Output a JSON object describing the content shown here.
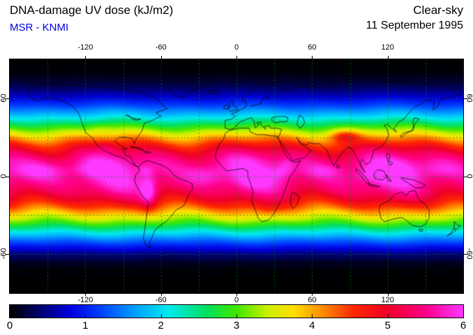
{
  "header": {
    "title": "DNA-damage UV dose (kJ/m2)",
    "source": "MSR - KNMI",
    "condition": "Clear-sky",
    "date": "11 September 1995"
  },
  "colors": {
    "background": "#ffffff",
    "title_text": "#000000",
    "source_text": "#0000dd",
    "grid": "#008800",
    "coastline": "#000000",
    "map_border": "#000000"
  },
  "chart_data": {
    "type": "heatmap",
    "title": "DNA-damage UV dose (kJ/m2)",
    "source": "MSR - KNMI",
    "condition": "Clear-sky",
    "date": "11 September 1995",
    "units": "kJ/m2",
    "projection": "equirectangular",
    "lon_range": [
      -180,
      180
    ],
    "lat_range": [
      -90,
      90
    ],
    "lon_ticks": [
      -120,
      -60,
      0,
      60,
      120
    ],
    "lat_ticks": [
      60,
      0,
      -60
    ],
    "grid_step_deg": 30,
    "grid_on": true,
    "colorbar": {
      "min": 0,
      "max": 6,
      "tick_values": [
        0,
        1,
        2,
        3,
        4,
        5,
        6
      ],
      "tick_labels": [
        "0",
        "1",
        "2",
        "3",
        "4",
        "5",
        "6"
      ],
      "stops": [
        [
          0,
          "#000000"
        ],
        [
          0.4,
          "#000070"
        ],
        [
          0.8,
          "#0000e0"
        ],
        [
          1.2,
          "#0040ff"
        ],
        [
          1.7,
          "#00a8ff"
        ],
        [
          2.1,
          "#00eaf0"
        ],
        [
          2.6,
          "#00e060"
        ],
        [
          3.0,
          "#40e800"
        ],
        [
          3.4,
          "#c8f000"
        ],
        [
          3.75,
          "#ffe000"
        ],
        [
          4.15,
          "#ff8800"
        ],
        [
          4.55,
          "#ff2800"
        ],
        [
          5.0,
          "#ee0028"
        ],
        [
          5.5,
          "#ff0088"
        ],
        [
          6,
          "#ff38ff"
        ]
      ]
    },
    "zonal_mean_profile": {
      "lat": [
        -90,
        -80,
        -72,
        -66,
        -60,
        -54,
        -48,
        -42,
        -36,
        -30,
        -24,
        -18,
        -12,
        -6,
        0,
        6,
        12,
        18,
        24,
        30,
        36,
        42,
        48,
        54,
        60,
        66,
        72,
        80,
        90
      ],
      "dose_kj_m2": [
        0,
        0,
        0.03,
        0.15,
        0.45,
        0.95,
        1.55,
        2.25,
        3.0,
        3.7,
        4.4,
        4.95,
        5.35,
        5.6,
        5.7,
        5.72,
        5.6,
        5.25,
        4.7,
        4.0,
        3.2,
        2.45,
        1.8,
        1.25,
        0.8,
        0.45,
        0.2,
        0.04,
        0
      ]
    },
    "zonal_wave": {
      "amp1": 0.045,
      "wavelength1_deg": 110,
      "phase1": 0.8,
      "amp2": 0.035,
      "wavelength2_deg": 56
    },
    "enhancements": [
      {
        "name": "equatorial-west-pacific",
        "lon": -155,
        "lat": 4,
        "amplitude": 0.45,
        "sigma_lon": 16,
        "sigma_lat": 5
      },
      {
        "name": "equatorial-east-pacific",
        "lon": -115,
        "lat": 5,
        "amplitude": 0.3,
        "sigma_lon": 9,
        "sigma_lat": 4
      },
      {
        "name": "andes-altiplano",
        "lon": -70,
        "lat": -13,
        "amplitude": 0.9,
        "sigma_lon": 4.5,
        "sigma_lat": 8
      },
      {
        "name": "colombia-andes",
        "lon": -72,
        "lat": 4,
        "amplitude": 0.3,
        "sigma_lon": 4,
        "sigma_lat": 3
      },
      {
        "name": "equatorial-atlantic",
        "lon": -25,
        "lat": 1,
        "amplitude": 0.4,
        "sigma_lon": 11,
        "sigma_lat": 5
      },
      {
        "name": "congo",
        "lon": 14,
        "lat": -2,
        "amplitude": 0.3,
        "sigma_lon": 8,
        "sigma_lat": 4
      },
      {
        "name": "east-africa",
        "lon": 36,
        "lat": 3,
        "amplitude": 0.35,
        "sigma_lon": 6,
        "sigma_lat": 4
      },
      {
        "name": "ethiopian-highlands",
        "lon": 40,
        "lat": 9,
        "amplitude": 0.25,
        "sigma_lon": 4,
        "sigma_lat": 3
      },
      {
        "name": "equatorial-indian-ocean",
        "lon": 70,
        "lat": 4,
        "amplitude": 0.32,
        "sigma_lon": 11,
        "sigma_lat": 4
      },
      {
        "name": "indonesia",
        "lon": 105,
        "lat": 1,
        "amplitude": 0.3,
        "sigma_lon": 8,
        "sigma_lat": 4
      },
      {
        "name": "new-guinea",
        "lon": 125,
        "lat": 3,
        "amplitude": 0.4,
        "sigma_lon": 10,
        "sigma_lat": 5
      },
      {
        "name": "west-pacific",
        "lon": 162,
        "lat": 5,
        "amplitude": 0.33,
        "sigma_lon": 12,
        "sigma_lat": 5
      },
      {
        "name": "tibetan-plateau",
        "lon": 86,
        "lat": 31,
        "amplitude": 0.9,
        "sigma_lon": 8,
        "sigma_lat": 3.5
      },
      {
        "name": "mexican-plateau",
        "lon": -103,
        "lat": 23,
        "amplitude": 0.3,
        "sigma_lon": 5,
        "sigma_lat": 3
      },
      {
        "name": "rockies",
        "lon": -108,
        "lat": 37,
        "amplitude": 0.2,
        "sigma_lon": 6,
        "sigma_lat": 3
      },
      {
        "name": "southern-africa",
        "lon": 24,
        "lat": -26,
        "amplitude": 0.25,
        "sigma_lon": 7,
        "sigma_lat": 4
      }
    ],
    "coastlines": {
      "north_america": [
        -166,
        68,
        -163,
        60,
        -158,
        58,
        -152,
        60,
        -145,
        60,
        -136,
        57,
        -130,
        54,
        -125,
        48,
        -123,
        42,
        -120,
        34,
        -114,
        29,
        -110,
        23,
        -105,
        20,
        -97,
        16,
        -93,
        15,
        -88,
        13,
        -84,
        10,
        -80,
        8,
        -78,
        7,
        -81,
        9,
        -84,
        15,
        -88,
        16,
        -90,
        21,
        -87,
        21,
        -91,
        23,
        -97,
        27,
        -93,
        30,
        -88,
        30,
        -83,
        29,
        -81,
        25,
        -80,
        28,
        -75,
        35,
        -73,
        41,
        -69,
        42,
        -65,
        44,
        -60,
        46,
        -64,
        49,
        -58,
        51,
        -55,
        52,
        -60,
        56,
        -64,
        60,
        -70,
        62,
        -77,
        65,
        -85,
        66,
        -93,
        68,
        -103,
        68,
        -115,
        69,
        -128,
        70,
        -140,
        70,
        -152,
        71,
        -162,
        70,
        -166,
        68
      ],
      "greenland": [
        -43,
        60,
        -50,
        63,
        -53,
        66,
        -51,
        69,
        -56,
        72,
        -60,
        75,
        -56,
        78,
        -48,
        80,
        -38,
        82,
        -28,
        82,
        -21,
        79,
        -19,
        75,
        -23,
        71,
        -27,
        69,
        -33,
        67,
        -40,
        63,
        -43,
        60
      ],
      "south_america": [
        -78,
        7,
        -74,
        11,
        -70,
        12,
        -64,
        10,
        -58,
        8,
        -53,
        5,
        -50,
        1,
        -45,
        -2,
        -39,
        -4,
        -35,
        -6,
        -35,
        -10,
        -38,
        -14,
        -40,
        -19,
        -42,
        -23,
        -48,
        -26,
        -52,
        -31,
        -56,
        -35,
        -62,
        -39,
        -65,
        -42,
        -67,
        -47,
        -69,
        -51,
        -68,
        -55,
        -72,
        -53,
        -74,
        -48,
        -73,
        -42,
        -72,
        -35,
        -71,
        -28,
        -70,
        -20,
        -75,
        -15,
        -79,
        -8,
        -81,
        -4,
        -80,
        1,
        -77,
        4,
        -78,
        7
      ],
      "africa": [
        -6,
        35,
        1,
        37,
        10,
        37,
        11,
        34,
        16,
        32,
        22,
        32,
        28,
        31,
        32,
        31,
        34,
        28,
        36,
        22,
        38,
        18,
        41,
        14,
        44,
        11,
        48,
        11,
        51,
        12,
        46,
        4,
        42,
        -1,
        40,
        -7,
        38,
        -12,
        36,
        -17,
        33,
        -23,
        29,
        -30,
        25,
        -34,
        20,
        -35,
        17,
        -32,
        15,
        -26,
        12,
        -19,
        13,
        -12,
        11,
        -5,
        9,
        0,
        9,
        4,
        5,
        6,
        -1,
        5,
        -8,
        4,
        -13,
        9,
        -17,
        14,
        -16,
        19,
        -14,
        24,
        -10,
        29,
        -9,
        33,
        -6,
        35
      ],
      "eurasia": [
        -9,
        37,
        -9,
        43,
        -4,
        44,
        -1,
        46,
        -4,
        48,
        -1,
        49,
        3,
        51,
        7,
        53,
        8,
        55,
        8,
        57,
        5,
        58,
        5,
        61,
        7,
        63,
        11,
        65,
        14,
        68,
        18,
        70,
        24,
        71,
        28,
        71,
        31,
        70,
        36,
        66,
        40,
        66,
        45,
        68,
        53,
        69,
        61,
        69,
        68,
        68,
        73,
        68,
        77,
        72,
        85,
        74,
        95,
        76,
        103,
        77,
        110,
        76,
        117,
        73,
        126,
        73,
        136,
        72,
        146,
        72,
        153,
        70,
        160,
        70,
        167,
        69,
        172,
        67,
        178,
        66,
        179,
        63,
        174,
        62,
        170,
        60,
        163,
        60,
        159,
        53,
        156,
        51,
        157,
        57,
        152,
        59,
        147,
        56,
        141,
        53,
        137,
        49,
        133,
        44,
        129,
        42,
        127,
        39,
        125,
        37,
        127,
        34,
        123,
        37,
        120,
        40,
        117,
        39,
        119,
        37,
        121,
        32,
        118,
        26,
        114,
        22,
        109,
        20,
        108,
        16,
        106,
        11,
        103,
        9,
        100,
        13,
        98,
        10,
        99,
        7,
        102,
        3,
        100,
        6,
        97,
        12,
        94,
        17,
        91,
        22,
        88,
        22,
        86,
        20,
        82,
        16,
        79,
        11,
        77,
        8,
        74,
        14,
        72,
        20,
        68,
        23,
        66,
        25,
        61,
        25,
        57,
        26,
        56,
        24,
        52,
        25,
        49,
        28,
        48,
        30,
        50,
        26,
        52,
        24,
        56,
        22,
        59,
        20,
        57,
        17,
        53,
        14,
        48,
        13,
        44,
        12,
        43,
        15,
        40,
        19,
        37,
        24,
        34,
        28,
        32,
        30,
        34,
        31,
        35,
        34,
        36,
        36,
        32,
        37,
        27,
        37,
        26,
        39,
        22,
        38,
        23,
        36,
        20,
        39,
        19,
        42,
        16,
        41,
        18,
        40,
        15,
        37,
        14,
        42,
        12,
        45,
        8,
        44,
        6,
        43,
        3,
        42,
        0,
        39,
        -2,
        37,
        -5,
        36,
        -9,
        37
      ],
      "black_sea": [
        28,
        45,
        33,
        46,
        38,
        46,
        41,
        45,
        40,
        42,
        35,
        42,
        31,
        41,
        28,
        43,
        28,
        45
      ],
      "caspian_sea": [
        50,
        47,
        53,
        45,
        54,
        41,
        52,
        38,
        50,
        37,
        48,
        40,
        49,
        44,
        50,
        47
      ],
      "baltic_sea": [
        11,
        54,
        16,
        55,
        20,
        56,
        19,
        58,
        22,
        60,
        26,
        60,
        24,
        63,
        22,
        66
      ],
      "great_lakes": [
        -88,
        47,
        -85,
        46,
        -83,
        44,
        -79,
        43,
        -76,
        44,
        -79,
        44,
        -83,
        45,
        -86,
        47,
        -88,
        47
      ],
      "uk": [
        -5,
        50,
        1,
        51,
        0,
        53,
        -3,
        55,
        -2,
        57,
        -4,
        58,
        -6,
        56,
        -5,
        54,
        -7,
        52,
        -5,
        50
      ],
      "ireland": [
        -10,
        52,
        -6,
        52,
        -6,
        54,
        -8,
        55,
        -10,
        54,
        -10,
        52
      ],
      "iceland": [
        -22,
        64,
        -16,
        63,
        -14,
        65,
        -18,
        66,
        -22,
        66,
        -22,
        64
      ],
      "japan": [
        130,
        31,
        132,
        33,
        135,
        34,
        140,
        35,
        141,
        38,
        140,
        41,
        141,
        45,
        145,
        44,
        143,
        42,
        141,
        39,
        139,
        35,
        135,
        33,
        131,
        30,
        130,
        31
      ],
      "sri_lanka": [
        80,
        9,
        82,
        8,
        81,
        6,
        79,
        7,
        80,
        9
      ],
      "sumatra": [
        95,
        6,
        99,
        3,
        104,
        -3,
        106,
        -6,
        103,
        -5,
        98,
        1,
        95,
        4,
        95,
        6
      ],
      "java": [
        105,
        -6,
        110,
        -7,
        114,
        -8,
        110,
        -8,
        105,
        -7,
        105,
        -6
      ],
      "borneo": [
        109,
        2,
        112,
        5,
        117,
        4,
        119,
        0,
        116,
        -3,
        110,
        -2,
        109,
        2
      ],
      "sulawesi": [
        119,
        1,
        121,
        -1,
        123,
        -4,
        120,
        -3,
        119,
        1
      ],
      "new_guinea": [
        131,
        -1,
        136,
        -2,
        141,
        -3,
        146,
        -5,
        150,
        -7,
        147,
        -9,
        142,
        -9,
        136,
        -5,
        131,
        -2,
        131,
        -1
      ],
      "philippines": [
        120,
        18,
        122,
        16,
        121,
        12,
        124,
        10,
        122,
        8,
        120,
        12,
        119,
        16,
        120,
        18
      ],
      "australia": [
        114,
        -22,
        113,
        -26,
        115,
        -33,
        118,
        -35,
        124,
        -33,
        129,
        -32,
        132,
        -32,
        136,
        -35,
        140,
        -38,
        146,
        -39,
        150,
        -37,
        153,
        -32,
        153,
        -26,
        150,
        -22,
        146,
        -19,
        143,
        -14,
        142,
        -11,
        137,
        -12,
        135,
        -15,
        131,
        -12,
        126,
        -14,
        121,
        -19,
        114,
        -22
      ],
      "tasmania": [
        145,
        -41,
        148,
        -41,
        147,
        -43,
        145,
        -42,
        145,
        -41
      ],
      "new_zealand": [
        173,
        -35,
        176,
        -38,
        178,
        -38,
        175,
        -41,
        173,
        -40,
        174,
        -42,
        171,
        -44,
        167,
        -46,
        170,
        -44,
        172,
        -41,
        173,
        -38,
        173,
        -35
      ],
      "madagascar": [
        44,
        -12,
        48,
        -14,
        50,
        -16,
        48,
        -22,
        45,
        -25,
        43,
        -22,
        43,
        -16,
        44,
        -12
      ],
      "cuba": [
        -84,
        22,
        -78,
        22,
        -74,
        20,
        -78,
        21,
        -82,
        23,
        -84,
        22
      ],
      "hispaniola": [
        -74,
        19,
        -70,
        19,
        -68,
        18,
        -72,
        18,
        -74,
        19
      ],
      "antarctica": [
        -180,
        -68,
        -160,
        -72,
        -140,
        -70,
        -120,
        -72,
        -100,
        -71,
        -80,
        -68,
        -62,
        -64,
        -55,
        -62,
        -45,
        -70,
        -30,
        -69,
        -10,
        -70,
        10,
        -69,
        30,
        -67,
        50,
        -66,
        70,
        -67,
        90,
        -66,
        110,
        -66,
        130,
        -65,
        150,
        -68,
        170,
        -71,
        180,
        -71
      ]
    }
  }
}
